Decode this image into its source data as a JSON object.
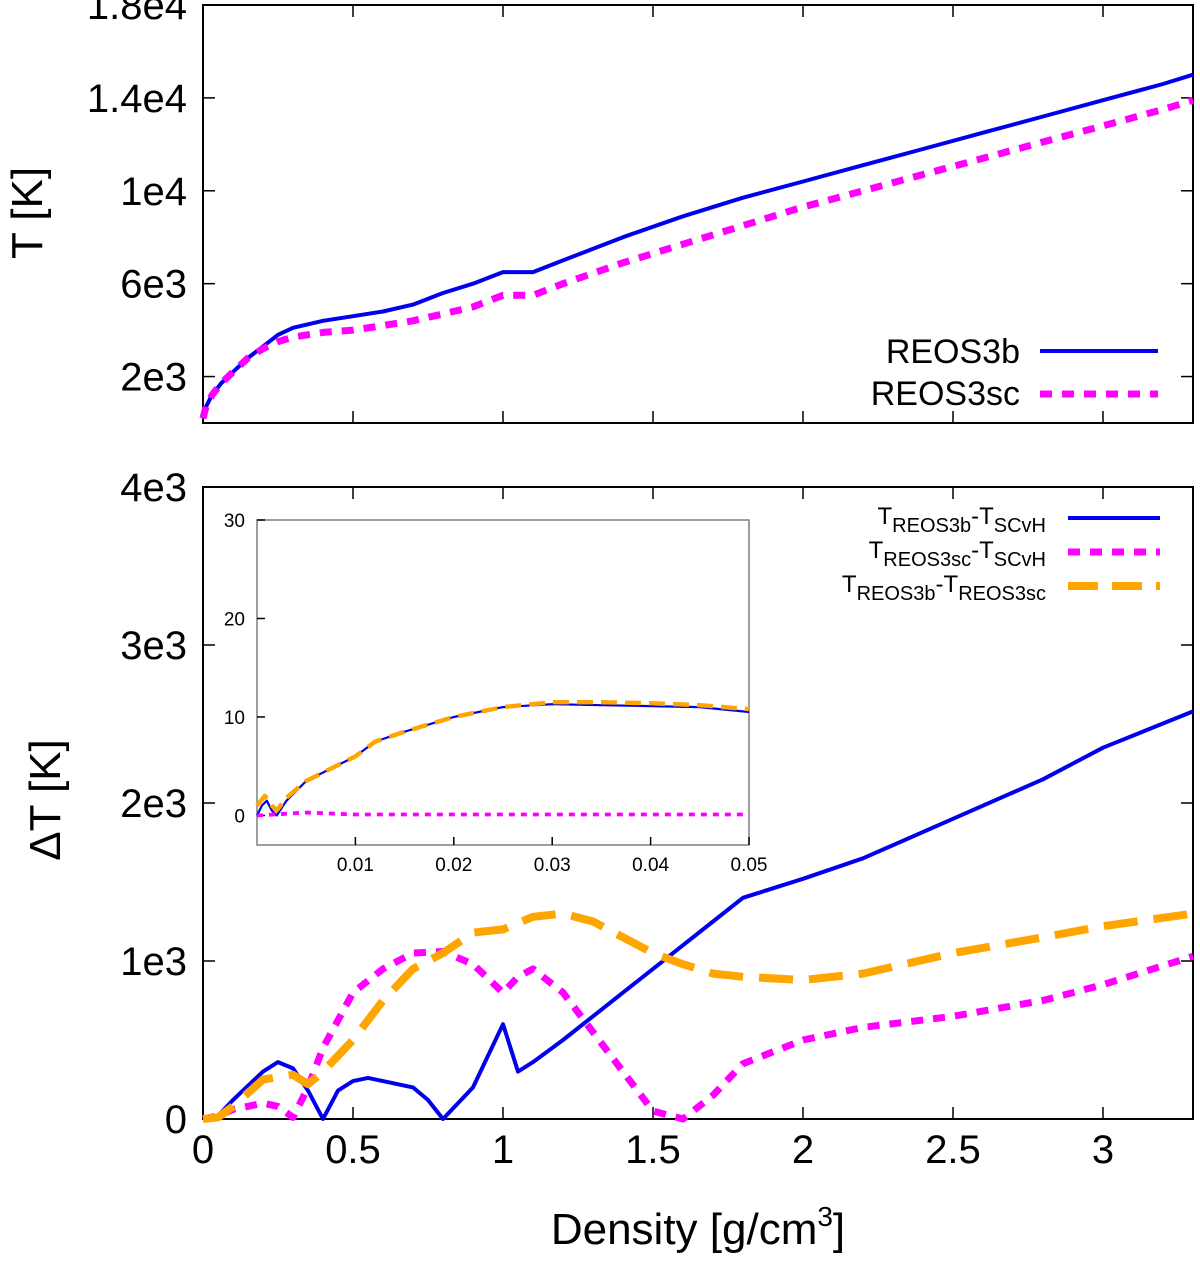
{
  "colors": {
    "blue": "#0000ee",
    "magenta": "#ff00ff",
    "orange": "#ffa500"
  },
  "chart_data": [
    {
      "id": "top",
      "type": "line",
      "xlim": [
        0,
        3.3
      ],
      "ylim": [
        0,
        18000
      ],
      "xticks": [
        0,
        0.5,
        1,
        1.5,
        2,
        2.5,
        3
      ],
      "yticks": [
        2000,
        6000,
        10000,
        14000,
        18000
      ],
      "ytick_labels": [
        "2e3",
        "6e3",
        "1e4",
        "1.4e4",
        "1.8e4"
      ],
      "ylabel": "T [K]",
      "xlabel": "",
      "legend_position": "bottom-right",
      "series": [
        {
          "name": "REOS3b",
          "color": "#0000ee",
          "style": "solid",
          "points": [
            [
              0,
              200
            ],
            [
              0.01,
              700
            ],
            [
              0.03,
              1200
            ],
            [
              0.06,
              1700
            ],
            [
              0.1,
              2200
            ],
            [
              0.15,
              2800
            ],
            [
              0.2,
              3300
            ],
            [
              0.25,
              3800
            ],
            [
              0.3,
              4100
            ],
            [
              0.4,
              4400
            ],
            [
              0.5,
              4600
            ],
            [
              0.6,
              4800
            ],
            [
              0.7,
              5100
            ],
            [
              0.8,
              5600
            ],
            [
              0.9,
              6000
            ],
            [
              1.0,
              6500
            ],
            [
              1.1,
              6500
            ],
            [
              1.2,
              7000
            ],
            [
              1.4,
              8000
            ],
            [
              1.6,
              8900
            ],
            [
              1.8,
              9700
            ],
            [
              2.0,
              10400
            ],
            [
              2.2,
              11100
            ],
            [
              2.4,
              11800
            ],
            [
              2.6,
              12500
            ],
            [
              2.8,
              13200
            ],
            [
              3.0,
              13900
            ],
            [
              3.2,
              14600
            ],
            [
              3.3,
              15000
            ]
          ]
        },
        {
          "name": "REOS3sc",
          "color": "#ff00ff",
          "style": "dashed",
          "points": [
            [
              0,
              200
            ],
            [
              0.01,
              700
            ],
            [
              0.03,
              1200
            ],
            [
              0.06,
              1700
            ],
            [
              0.1,
              2200
            ],
            [
              0.15,
              2800
            ],
            [
              0.2,
              3200
            ],
            [
              0.25,
              3500
            ],
            [
              0.3,
              3700
            ],
            [
              0.4,
              3900
            ],
            [
              0.5,
              4000
            ],
            [
              0.6,
              4200
            ],
            [
              0.7,
              4400
            ],
            [
              0.8,
              4700
            ],
            [
              0.9,
              5000
            ],
            [
              1.0,
              5500
            ],
            [
              1.1,
              5500
            ],
            [
              1.2,
              6000
            ],
            [
              1.4,
              6900
            ],
            [
              1.6,
              7700
            ],
            [
              1.8,
              8500
            ],
            [
              2.0,
              9300
            ],
            [
              2.2,
              10000
            ],
            [
              2.4,
              10700
            ],
            [
              2.6,
              11400
            ],
            [
              2.8,
              12100
            ],
            [
              3.0,
              12800
            ],
            [
              3.2,
              13500
            ],
            [
              3.3,
              13900
            ]
          ]
        }
      ]
    },
    {
      "id": "bottom",
      "type": "line",
      "xlim": [
        0,
        3.3
      ],
      "ylim": [
        0,
        4000
      ],
      "xticks": [
        0,
        0.5,
        1,
        1.5,
        2,
        2.5,
        3
      ],
      "xtick_labels": [
        "0",
        "0.5",
        "1",
        "1.5",
        "2",
        "2.5",
        "3"
      ],
      "yticks": [
        0,
        1000,
        2000,
        3000,
        4000
      ],
      "ytick_labels": [
        "0",
        "1e3",
        "2e3",
        "3e3",
        "4e3"
      ],
      "ylabel": "ΔT [K]",
      "xlabel_main": "Density [g/cm",
      "xlabel_sup": "3",
      "xlabel_end": "]",
      "legend_position": "top-right",
      "series": [
        {
          "name": "TREOS3b-TSCvH",
          "legend": {
            "a": "T",
            "a_sub": "REOS3b",
            "b": "-T",
            "b_sub": "SCvH"
          },
          "color": "#0000ee",
          "style": "solid",
          "points": [
            [
              0,
              0
            ],
            [
              0.05,
              20
            ],
            [
              0.1,
              120
            ],
            [
              0.2,
              300
            ],
            [
              0.25,
              360
            ],
            [
              0.3,
              320
            ],
            [
              0.35,
              180
            ],
            [
              0.4,
              0
            ],
            [
              0.45,
              180
            ],
            [
              0.5,
              240
            ],
            [
              0.55,
              260
            ],
            [
              0.6,
              240
            ],
            [
              0.7,
              200
            ],
            [
              0.75,
              120
            ],
            [
              0.8,
              0
            ],
            [
              0.9,
              200
            ],
            [
              1.0,
              600
            ],
            [
              1.05,
              300
            ],
            [
              1.1,
              360
            ],
            [
              1.2,
              500
            ],
            [
              1.3,
              650
            ],
            [
              1.4,
              800
            ],
            [
              1.5,
              950
            ],
            [
              1.6,
              1100
            ],
            [
              1.7,
              1250
            ],
            [
              1.8,
              1400
            ],
            [
              2.0,
              1520
            ],
            [
              2.2,
              1650
            ],
            [
              2.5,
              1900
            ],
            [
              2.8,
              2150
            ],
            [
              3.0,
              2350
            ],
            [
              3.3,
              2580
            ]
          ]
        },
        {
          "name": "TREOS3sc-TSCvH",
          "legend": {
            "a": "T",
            "a_sub": "REOS3sc",
            "b": "-T",
            "b_sub": "SCvH"
          },
          "color": "#ff00ff",
          "style": "dashed",
          "points": [
            [
              0,
              0
            ],
            [
              0.05,
              20
            ],
            [
              0.1,
              60
            ],
            [
              0.2,
              100
            ],
            [
              0.25,
              80
            ],
            [
              0.3,
              10
            ],
            [
              0.35,
              200
            ],
            [
              0.4,
              450
            ],
            [
              0.5,
              800
            ],
            [
              0.6,
              950
            ],
            [
              0.7,
              1050
            ],
            [
              0.8,
              1060
            ],
            [
              0.9,
              980
            ],
            [
              1.0,
              800
            ],
            [
              1.05,
              900
            ],
            [
              1.1,
              950
            ],
            [
              1.2,
              800
            ],
            [
              1.3,
              550
            ],
            [
              1.4,
              300
            ],
            [
              1.5,
              50
            ],
            [
              1.6,
              0
            ],
            [
              1.7,
              150
            ],
            [
              1.8,
              350
            ],
            [
              2.0,
              500
            ],
            [
              2.2,
              580
            ],
            [
              2.5,
              650
            ],
            [
              2.8,
              750
            ],
            [
              3.0,
              850
            ],
            [
              3.3,
              1030
            ]
          ]
        },
        {
          "name": "TREOS3b-TREOS3sc",
          "legend": {
            "a": "T",
            "a_sub": "REOS3b",
            "b": "-T",
            "b_sub": "REOS3sc"
          },
          "color": "#ffa500",
          "style": "longdash",
          "points": [
            [
              0,
              0
            ],
            [
              0.05,
              10
            ],
            [
              0.1,
              80
            ],
            [
              0.2,
              250
            ],
            [
              0.3,
              280
            ],
            [
              0.35,
              220
            ],
            [
              0.4,
              300
            ],
            [
              0.5,
              500
            ],
            [
              0.6,
              750
            ],
            [
              0.7,
              950
            ],
            [
              0.8,
              1050
            ],
            [
              0.9,
              1180
            ],
            [
              1.0,
              1200
            ],
            [
              1.1,
              1280
            ],
            [
              1.2,
              1300
            ],
            [
              1.3,
              1250
            ],
            [
              1.4,
              1150
            ],
            [
              1.5,
              1050
            ],
            [
              1.6,
              980
            ],
            [
              1.7,
              920
            ],
            [
              1.8,
              900
            ],
            [
              2.0,
              880
            ],
            [
              2.2,
              920
            ],
            [
              2.5,
              1050
            ],
            [
              2.8,
              1150
            ],
            [
              3.0,
              1220
            ],
            [
              3.3,
              1300
            ]
          ]
        }
      ]
    },
    {
      "id": "inset",
      "type": "line",
      "xlim": [
        0,
        0.05
      ],
      "ylim": [
        -3,
        30
      ],
      "xticks": [
        0.01,
        0.02,
        0.03,
        0.04,
        0.05
      ],
      "xtick_labels": [
        "0.01",
        "0.02",
        "0.03",
        "0.04",
        "0.05"
      ],
      "yticks": [
        0,
        10,
        20,
        30
      ],
      "ytick_labels": [
        "0",
        "10",
        "20",
        "30"
      ],
      "series": [
        {
          "name": "TREOS3b-TSCvH",
          "color": "#0000ee",
          "style": "solid",
          "points": [
            [
              0,
              0
            ],
            [
              0.0005,
              1
            ],
            [
              0.001,
              1.5
            ],
            [
              0.0015,
              0.5
            ],
            [
              0.002,
              0
            ],
            [
              0.003,
              1.5
            ],
            [
              0.005,
              3.5
            ],
            [
              0.008,
              5
            ],
            [
              0.01,
              6
            ],
            [
              0.012,
              7.5
            ],
            [
              0.015,
              8.5
            ],
            [
              0.02,
              10
            ],
            [
              0.025,
              11
            ],
            [
              0.03,
              11.3
            ],
            [
              0.035,
              11.2
            ],
            [
              0.04,
              11.1
            ],
            [
              0.045,
              11.0
            ],
            [
              0.05,
              10.5
            ]
          ]
        },
        {
          "name": "TREOS3sc-TSCvH",
          "color": "#ff00ff",
          "style": "dashed",
          "points": [
            [
              0,
              0
            ],
            [
              0.005,
              0.3
            ],
            [
              0.01,
              0.1
            ],
            [
              0.02,
              0.1
            ],
            [
              0.03,
              0.1
            ],
            [
              0.04,
              0.1
            ],
            [
              0.05,
              0.1
            ]
          ]
        },
        {
          "name": "TREOS3b-TREOS3sc",
          "color": "#ffa500",
          "style": "longdash",
          "points": [
            [
              0,
              1
            ],
            [
              0.0008,
              2
            ],
            [
              0.0015,
              1
            ],
            [
              0.002,
              0.5
            ],
            [
              0.003,
              1.8
            ],
            [
              0.005,
              3.5
            ],
            [
              0.008,
              5
            ],
            [
              0.01,
              6
            ],
            [
              0.012,
              7.5
            ],
            [
              0.015,
              8.5
            ],
            [
              0.02,
              10
            ],
            [
              0.025,
              11
            ],
            [
              0.03,
              11.5
            ],
            [
              0.035,
              11.5
            ],
            [
              0.04,
              11.4
            ],
            [
              0.045,
              11.2
            ],
            [
              0.05,
              10.8
            ]
          ]
        }
      ]
    }
  ]
}
